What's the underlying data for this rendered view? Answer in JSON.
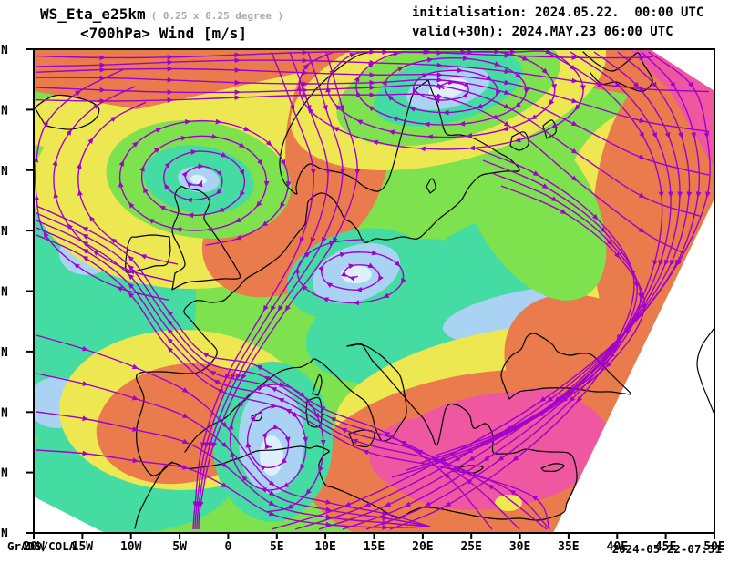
{
  "header": {
    "model": "WS_Eta_e25km",
    "resolution": "( 0.25 x 0.25 degree )",
    "field_line": "<700hPa> Wind [m/s]",
    "init_line": "initialisation: 2024.05.22.  00:00 UTC",
    "valid_line": "valid(+30h): 2024.MAY.23 06:00 UTC"
  },
  "axes": {
    "x_ticks": [
      "20W",
      "15W",
      "10W",
      "5W",
      "0",
      "5E",
      "10E",
      "15E",
      "20E",
      "25E",
      "30E",
      "35E",
      "40E",
      "45E",
      "50E"
    ],
    "y_ticks": [
      "N",
      "N",
      "N",
      "N",
      "N",
      "N",
      "N",
      "N",
      "N"
    ]
  },
  "footer": {
    "left": "GrADS/COLA",
    "right": "2024-05-22-07:31"
  },
  "palette": {
    "green": "#7DE24E",
    "teal": "#44DCA2",
    "lightblue": "#A9D2F3",
    "paleblue": "#DDF0FB",
    "yellow": "#EDE751",
    "orange": "#E97B4C",
    "pink": "#EF57A1",
    "white": "#FFFFFF"
  },
  "map": {
    "streamline_color": "#A100CD",
    "coast_color": "#000000",
    "frame_color": "#000000",
    "subtitle_color": "#A9A9A9"
  }
}
